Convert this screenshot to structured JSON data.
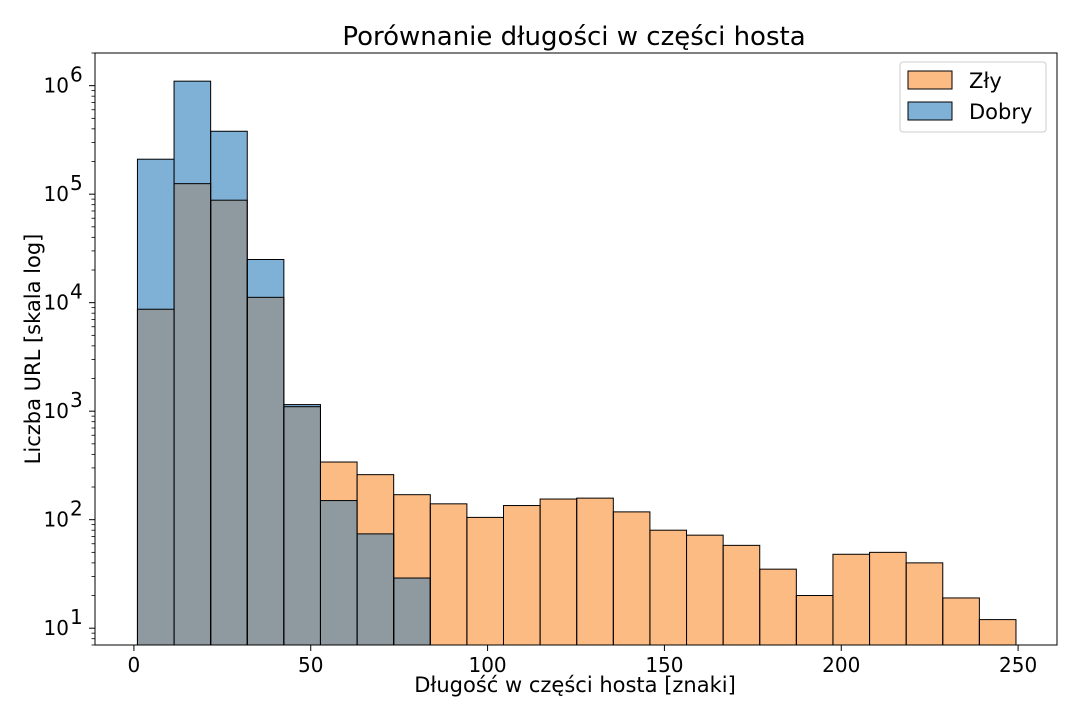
{
  "chart_data": {
    "type": "bar",
    "title": "Porównanie długości w części hosta",
    "xlabel": "Długość w części hosta [znaki]",
    "ylabel": "Liczba URL [skala log]",
    "yscale": "log",
    "xlim": [
      -11,
      261
    ],
    "ylim": [
      7,
      2000000
    ],
    "x_ticks": [
      0,
      50,
      100,
      150,
      200,
      250
    ],
    "y_ticks": [
      {
        "value": 10,
        "base": "10",
        "exp": "1"
      },
      {
        "value": 100,
        "base": "10",
        "exp": "2"
      },
      {
        "value": 1000,
        "base": "10",
        "exp": "3"
      },
      {
        "value": 10000,
        "base": "10",
        "exp": "4"
      },
      {
        "value": 100000,
        "base": "10",
        "exp": "5"
      },
      {
        "value": 1000000,
        "base": "10",
        "exp": "6"
      }
    ],
    "bin_edges": [
      1,
      11.35,
      21.7,
      32.05,
      42.4,
      52.75,
      63.1,
      73.45,
      83.8,
      94.15,
      104.5,
      114.85,
      125.2,
      135.55,
      145.9,
      156.25,
      166.6,
      176.95,
      187.3,
      197.65,
      208,
      218.35,
      228.7,
      239.05,
      249.4
    ],
    "series": [
      {
        "name": "Zły",
        "color": "#fdbb84",
        "values": [
          8700,
          125000,
          88000,
          11200,
          1100,
          340,
          260,
          170,
          140,
          105,
          135,
          155,
          158,
          118,
          80,
          72,
          58,
          35,
          20,
          48,
          50,
          40,
          19,
          12
        ]
      },
      {
        "name": "Dobry",
        "color": "#7fb1d6",
        "values": [
          210000,
          1100000,
          380000,
          25000,
          1150,
          150,
          74,
          29,
          0,
          0,
          0,
          0,
          0,
          0,
          0,
          0,
          0,
          0,
          0,
          0,
          0,
          0,
          0,
          0
        ]
      }
    ],
    "overlap_color": "#8e9a9f",
    "grid": false,
    "legend_position": "top-right"
  }
}
